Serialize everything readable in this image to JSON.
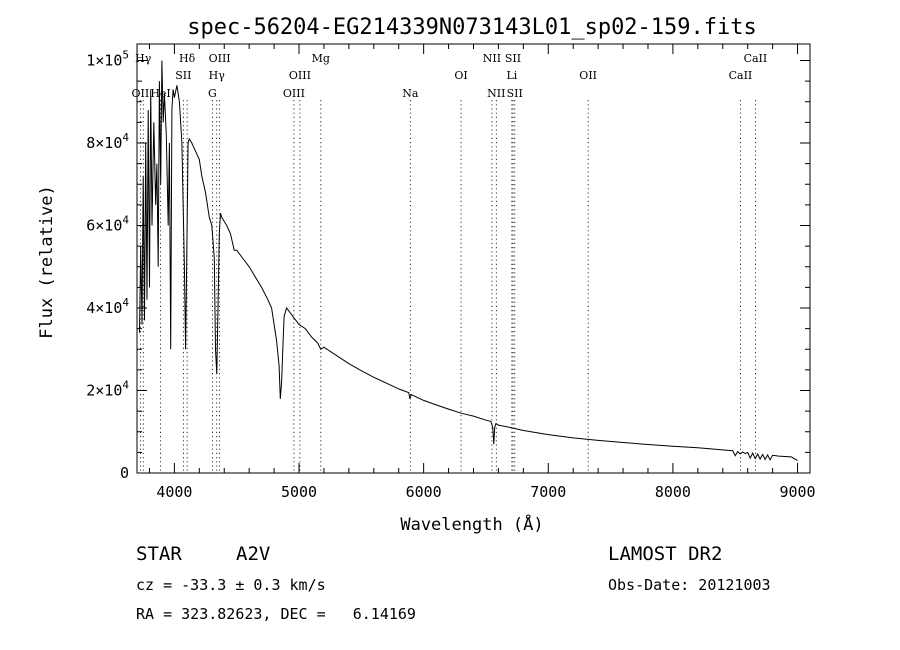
{
  "chart_data": {
    "type": "line",
    "title": "spec-56204-EG214339N073143L01_sp02-159.fits",
    "xlabel": "Wavelength (Å)",
    "ylabel": "Flux (relative)",
    "xlim": [
      3700,
      9100
    ],
    "ylim": [
      0,
      104000
    ],
    "x_ticks": [
      4000,
      5000,
      6000,
      7000,
      8000,
      9000
    ],
    "y_ticks": [
      {
        "value": 0,
        "mantissa": "0",
        "exp": ""
      },
      {
        "value": 20000,
        "mantissa": "2×10",
        "exp": "4"
      },
      {
        "value": 40000,
        "mantissa": "4×10",
        "exp": "4"
      },
      {
        "value": 60000,
        "mantissa": "6×10",
        "exp": "4"
      },
      {
        "value": 80000,
        "mantissa": "8×10",
        "exp": "4"
      },
      {
        "value": 100000,
        "mantissa": "1×10",
        "exp": "5"
      }
    ],
    "series": [
      {
        "x": [
          3720,
          3730,
          3740,
          3750,
          3760,
          3770,
          3780,
          3790,
          3800,
          3810,
          3820,
          3835,
          3850,
          3860,
          3870,
          3880,
          3890,
          3900,
          3910,
          3920,
          3935,
          3950,
          3960,
          3970,
          3980,
          3990,
          4000,
          4020,
          4040,
          4060,
          4080,
          4090,
          4100,
          4110,
          4120,
          4140,
          4170,
          4200,
          4220,
          4250,
          4280,
          4300,
          4320,
          4330,
          4340,
          4350,
          4360,
          4370,
          4380,
          4400,
          4420,
          4450,
          4480,
          4500,
          4550,
          4600,
          4650,
          4700,
          4750,
          4780,
          4800,
          4820,
          4840,
          4850,
          4860,
          4870,
          4880,
          4900,
          4950,
          5000,
          5050,
          5100,
          5150,
          5175,
          5200,
          5300,
          5400,
          5500,
          5600,
          5700,
          5800,
          5880,
          5890,
          5900,
          6000,
          6100,
          6200,
          6300,
          6400,
          6500,
          6540,
          6555,
          6563,
          6570,
          6580,
          6600,
          6700,
          6800,
          7000,
          7200,
          7400,
          7600,
          7800,
          8000,
          8200,
          8400,
          8480,
          8500,
          8520,
          8540,
          8560,
          8580,
          8600,
          8620,
          8640,
          8660,
          8680,
          8700,
          8720,
          8740,
          8760,
          8780,
          8800,
          8850,
          8900,
          8950,
          9000
        ],
        "y": [
          34000,
          55000,
          36000,
          72000,
          37000,
          80000,
          42000,
          88000,
          45000,
          93000,
          60000,
          85000,
          65000,
          75000,
          50000,
          95000,
          70000,
          100000,
          85000,
          92000,
          82000,
          60000,
          80000,
          30000,
          88000,
          93000,
          91000,
          94000,
          90000,
          80000,
          50000,
          30000,
          55000,
          80000,
          81000,
          80000,
          78000,
          76000,
          72000,
          68000,
          62000,
          60000,
          52000,
          30000,
          24000,
          40000,
          58000,
          63000,
          62000,
          61000,
          60000,
          58000,
          54000,
          54000,
          52000,
          50000,
          47500,
          45000,
          42000,
          40000,
          36000,
          32000,
          26000,
          18000,
          22000,
          30000,
          38000,
          40000,
          38000,
          36000,
          35000,
          33000,
          31500,
          30000,
          30500,
          28500,
          26500,
          24800,
          23200,
          21800,
          20400,
          19500,
          18000,
          19000,
          17600,
          16500,
          15500,
          14500,
          13800,
          12800,
          12500,
          11000,
          7000,
          11000,
          12000,
          11600,
          11000,
          10300,
          9300,
          8500,
          7900,
          7400,
          6900,
          6500,
          6100,
          5600,
          5400,
          4200,
          5200,
          4600,
          5100,
          4700,
          5000,
          3600,
          4800,
          3500,
          4600,
          3400,
          4500,
          3300,
          4400,
          3200,
          4300,
          4100,
          4000,
          3900,
          3000
        ]
      }
    ],
    "lines": [
      {
        "label": "OII",
        "x": 3727,
        "row": 3
      },
      {
        "label": "Hγ",
        "x": 3750,
        "row": 1
      },
      {
        "label": "HeI",
        "x": 3889,
        "row": 3
      },
      {
        "label": "Hδ",
        "x": 4102,
        "row": 1
      },
      {
        "label": "SII",
        "x": 4072,
        "row": 2
      },
      {
        "label": "OIII",
        "x": 4363,
        "row": 1
      },
      {
        "label": "Hγ",
        "x": 4340,
        "row": 2
      },
      {
        "label": "G",
        "x": 4305,
        "row": 3
      },
      {
        "label": "Mg",
        "x": 5175,
        "row": 1
      },
      {
        "label": "OIII",
        "x": 5007,
        "row": 2
      },
      {
        "label": "OIII",
        "x": 4959,
        "row": 3
      },
      {
        "label": "Na",
        "x": 5893,
        "row": 3
      },
      {
        "label": "OI",
        "x": 6300,
        "row": 2
      },
      {
        "label": "NII",
        "x": 6548,
        "row": 1
      },
      {
        "label": "SII",
        "x": 6717,
        "row": 1
      },
      {
        "label": "Li",
        "x": 6708,
        "row": 2
      },
      {
        "label": "NII",
        "x": 6583,
        "row": 3
      },
      {
        "label": "SII",
        "x": 6731,
        "row": 3
      },
      {
        "label": "OII",
        "x": 7320,
        "row": 2
      },
      {
        "label": "CaII",
        "x": 8662,
        "row": 1
      },
      {
        "label": "CaII",
        "x": 8542,
        "row": 2
      }
    ],
    "grid": false,
    "legend": "none"
  },
  "info": {
    "obj_class": "STAR",
    "subclass": "A2V",
    "cz": "cz = -33.3 ± 0.3 km/s",
    "radec": "RA = 323.82623, DEC =   6.14169",
    "survey": "LAMOST DR2",
    "obs_date": "Obs-Date: 20121003"
  }
}
